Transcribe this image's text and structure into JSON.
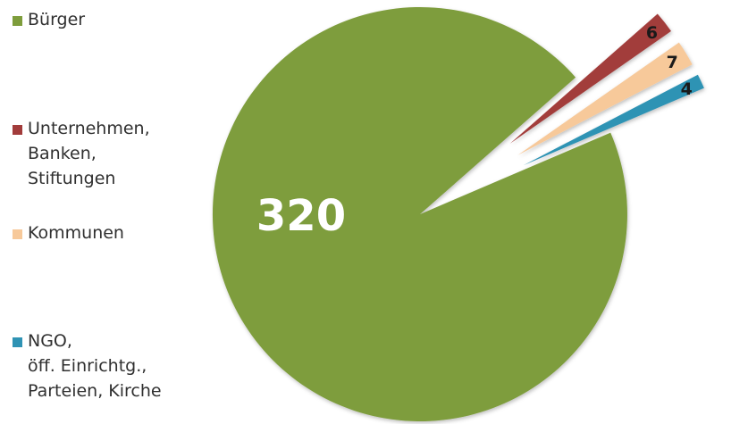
{
  "chart_data": {
    "type": "pie",
    "exploded": true,
    "categories": [
      "Bürger",
      "Unternehmen,\nBanken,\nStiftungen",
      "Kommunen",
      "NGO,\nöff. Einrichtg.,\nParteien, Kirche"
    ],
    "values": [
      320,
      6,
      7,
      4
    ],
    "data_labels": [
      "320",
      "6",
      "7",
      "4"
    ],
    "colors": [
      "#7e9d3c",
      "#a23c3b",
      "#f7c99a",
      "#2f93b4"
    ],
    "label_colors": [
      "#ffffff",
      "#1a1a1a",
      "#1a1a1a",
      "#1a1a1a"
    ],
    "legend_position": "left"
  }
}
